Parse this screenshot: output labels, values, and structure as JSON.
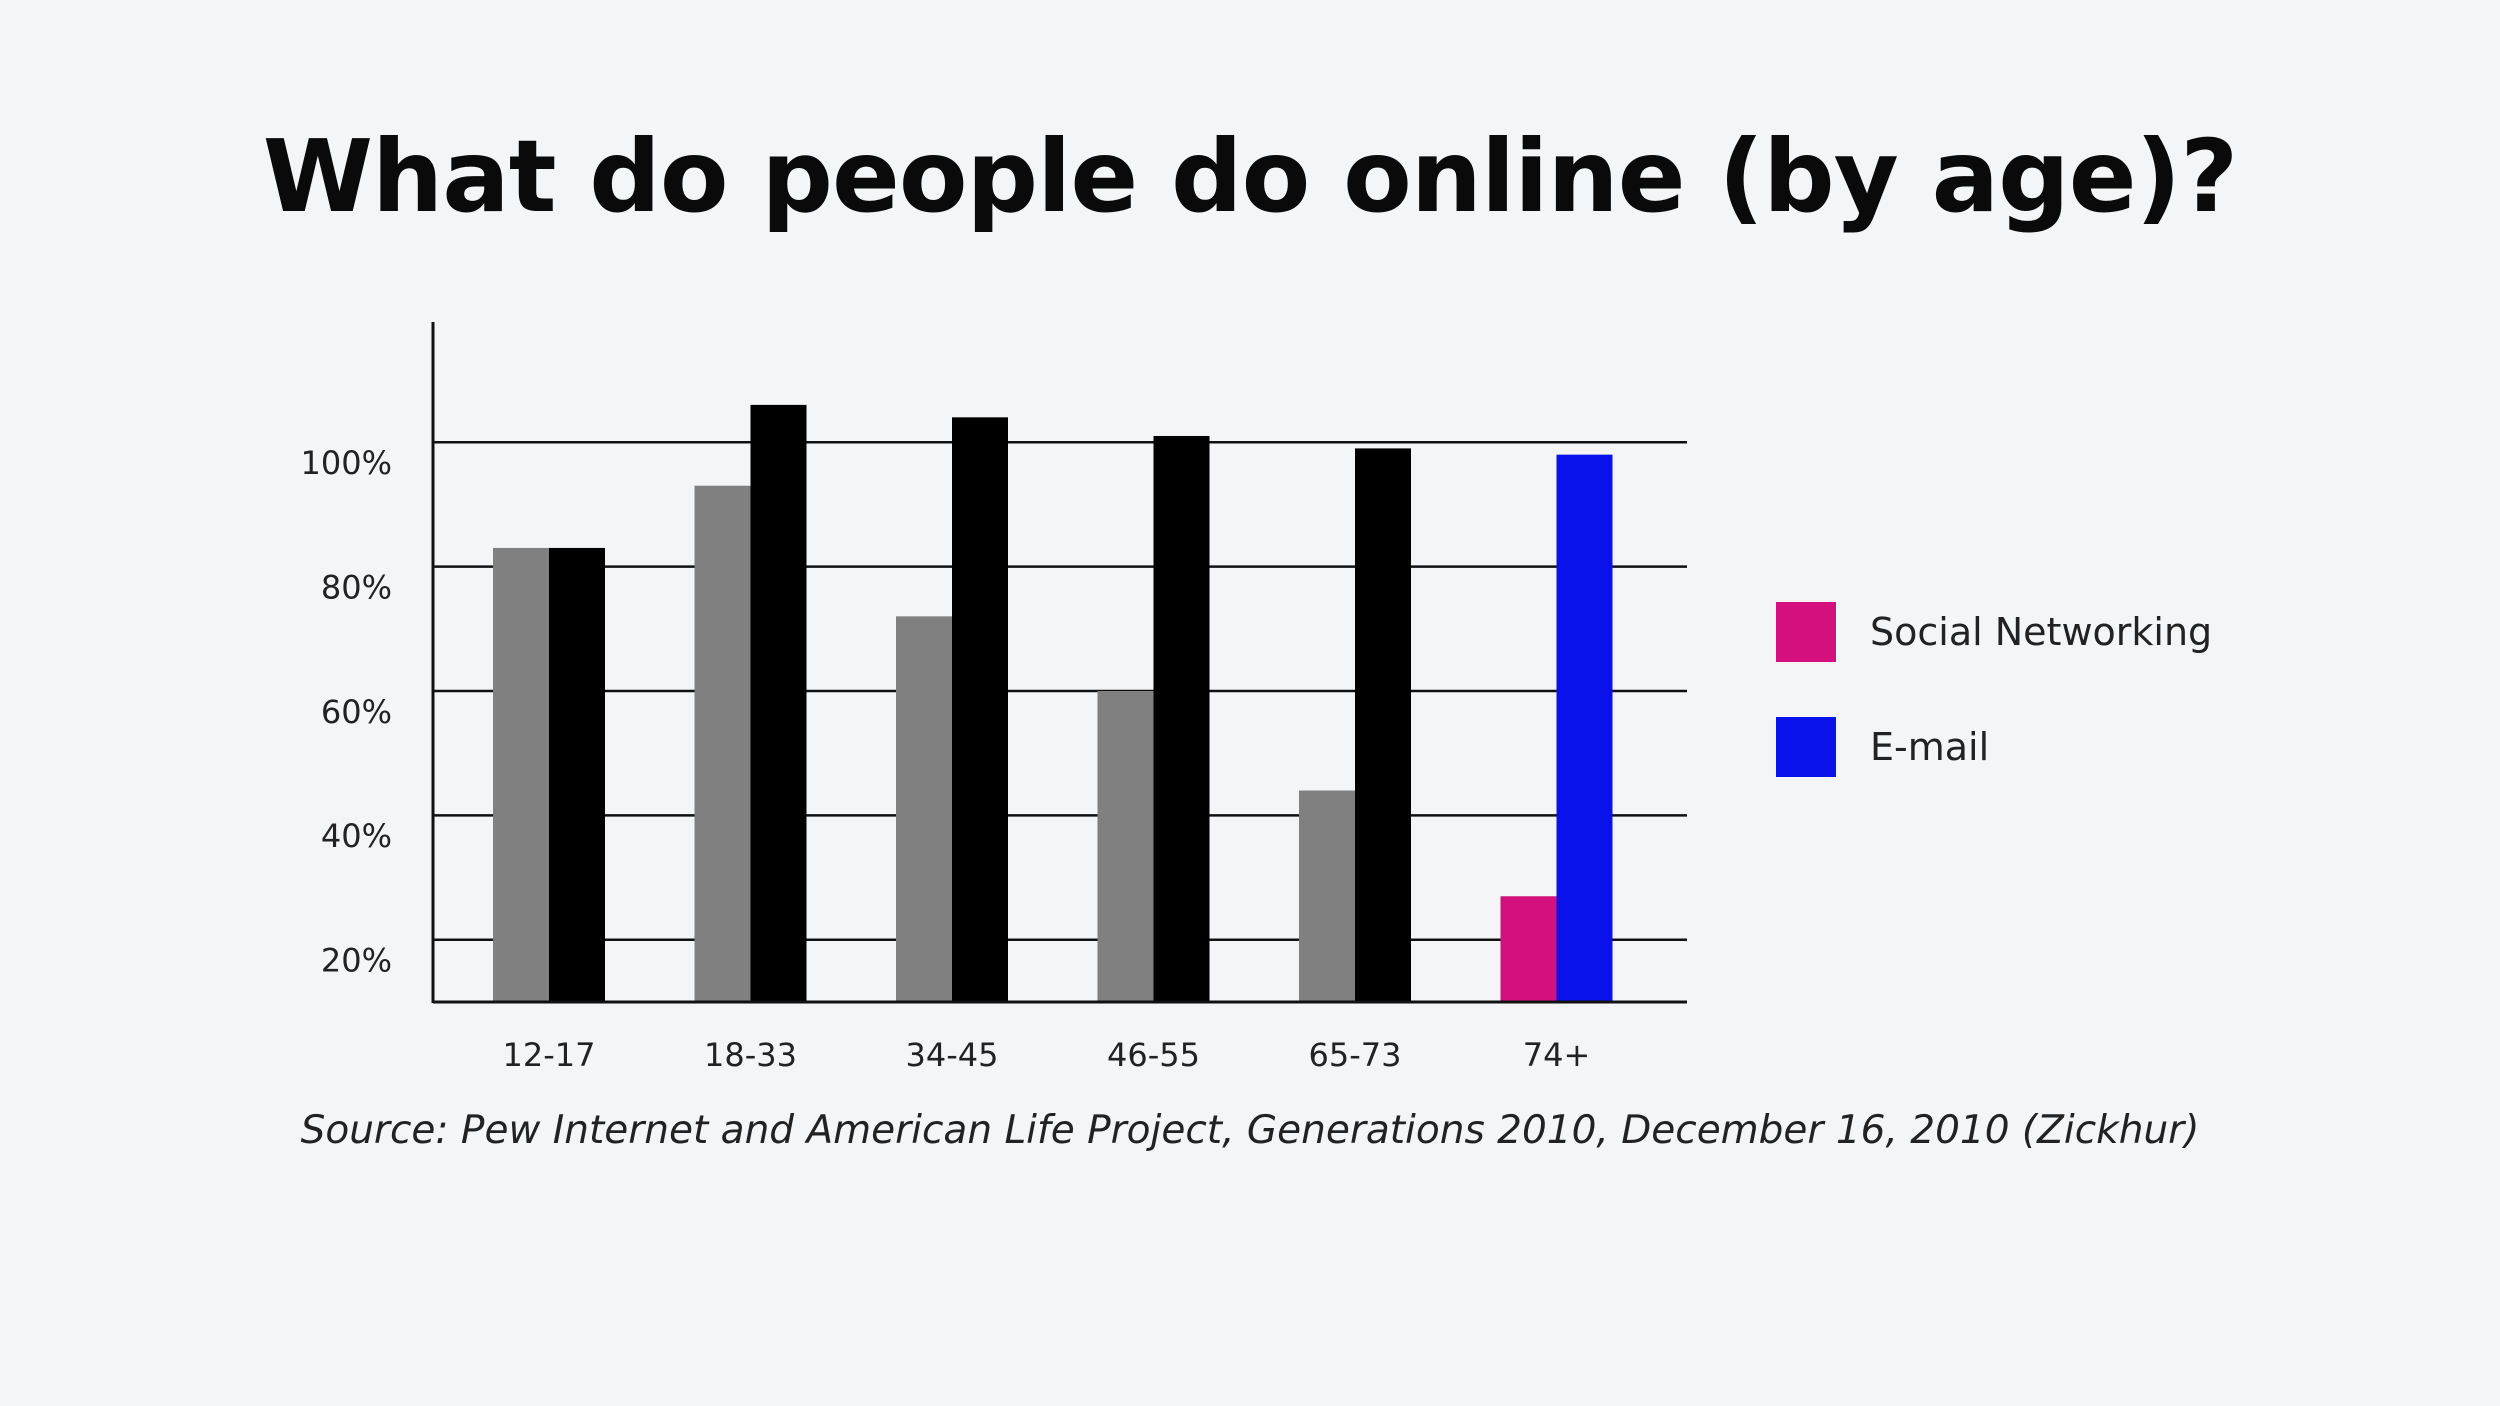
{
  "chart_data": {
    "type": "bar",
    "title": "What do people do online (by age)?",
    "categories": [
      "12-17",
      "18-33",
      "34-45",
      "46-55",
      "65-73",
      "74+"
    ],
    "series": [
      {
        "name": "Social Networking",
        "values": [
          73,
          83,
          62,
          50,
          34,
          17
        ]
      },
      {
        "name": "E-mail",
        "values": [
          73,
          96,
          94,
          91,
          89,
          88
        ]
      }
    ],
    "bar_colors": {
      "social_default": "#808080",
      "email_default": "#000000",
      "social_highlight": "#d4107e",
      "email_highlight": "#0a12ec"
    },
    "highlight_category": "74+",
    "y_ticks": [
      {
        "value": 100,
        "label": "100%"
      },
      {
        "value": 80,
        "label": "80%"
      },
      {
        "value": 60,
        "label": "60%"
      },
      {
        "value": 40,
        "label": "40%"
      },
      {
        "value": 20,
        "label": "20%"
      }
    ],
    "ylim": [
      0,
      100
    ],
    "grid": true,
    "legend": {
      "placement": "right",
      "items": [
        {
          "label": "Social Networking",
          "color": "#d4107e"
        },
        {
          "label": "E-mail",
          "color": "#0a12ec"
        }
      ]
    },
    "source": "Source: Pew Internet and American Life Project, Generations 2010, December 16, 2010 (Zickhur)"
  }
}
